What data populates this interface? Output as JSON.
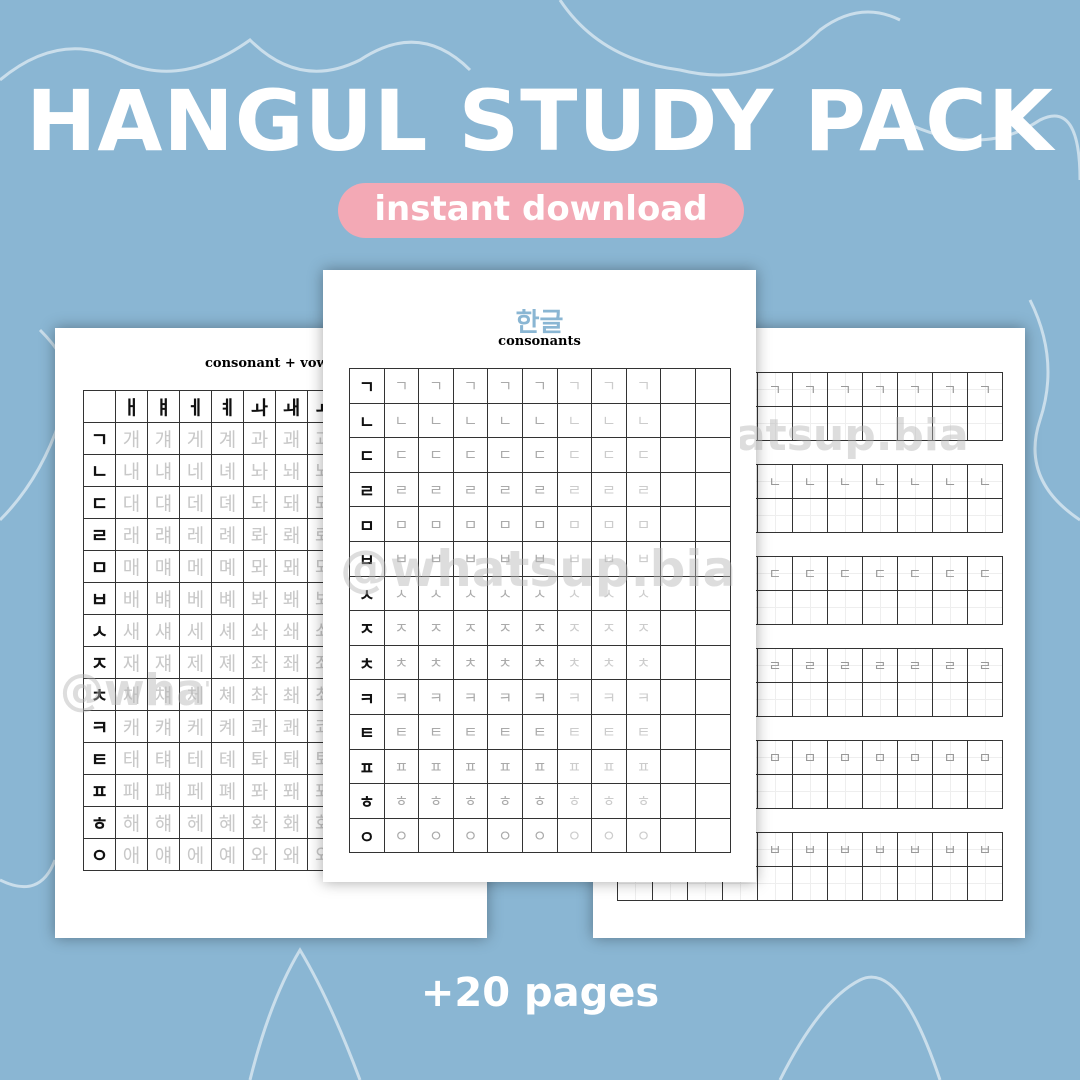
{
  "title": "HANGUL STUDY PACK",
  "badge": "instant download",
  "footer": "+20 pages",
  "watermark": "@whatsup.bia",
  "colors": {
    "background": "#8ab6d3",
    "badge": "#f3a9b5",
    "accent": "#8ab6d3"
  },
  "left_page": {
    "heading": "consonant + vowel",
    "vowels": [
      "ㅐ",
      "ㅒ",
      "ㅔ",
      "ㅖ",
      "ㅘ",
      "ㅙ",
      "ㅚ"
    ],
    "rows": [
      {
        "c": "ㄱ",
        "s": [
          "개",
          "걔",
          "게",
          "계",
          "과",
          "괘",
          "괴"
        ]
      },
      {
        "c": "ㄴ",
        "s": [
          "내",
          "냬",
          "네",
          "녜",
          "놔",
          "놰",
          "뇌"
        ]
      },
      {
        "c": "ㄷ",
        "s": [
          "대",
          "댸",
          "데",
          "뎨",
          "돠",
          "돼",
          "되"
        ]
      },
      {
        "c": "ㄹ",
        "s": [
          "래",
          "럐",
          "레",
          "례",
          "롸",
          "뢔",
          "뢰"
        ]
      },
      {
        "c": "ㅁ",
        "s": [
          "매",
          "먜",
          "메",
          "몌",
          "뫄",
          "뫠",
          "뫼"
        ]
      },
      {
        "c": "ㅂ",
        "s": [
          "배",
          "뱨",
          "베",
          "볘",
          "봐",
          "봬",
          "뵈"
        ]
      },
      {
        "c": "ㅅ",
        "s": [
          "새",
          "섀",
          "세",
          "셰",
          "솨",
          "쇄",
          "쇠"
        ]
      },
      {
        "c": "ㅈ",
        "s": [
          "재",
          "쟤",
          "제",
          "졔",
          "좌",
          "좨",
          "죄"
        ]
      },
      {
        "c": "ㅊ",
        "s": [
          "채",
          "챼",
          "체",
          "쳬",
          "촤",
          "쵀",
          "최"
        ]
      },
      {
        "c": "ㅋ",
        "s": [
          "캐",
          "컈",
          "케",
          "켸",
          "콰",
          "쾌",
          "쾨"
        ]
      },
      {
        "c": "ㅌ",
        "s": [
          "태",
          "턔",
          "테",
          "톄",
          "톼",
          "퇘",
          "퇴"
        ]
      },
      {
        "c": "ㅍ",
        "s": [
          "패",
          "퍠",
          "페",
          "폐",
          "퐈",
          "퐤",
          "푀"
        ]
      },
      {
        "c": "ㅎ",
        "s": [
          "해",
          "햬",
          "헤",
          "혜",
          "화",
          "홰",
          "회"
        ]
      },
      {
        "c": "ㅇ",
        "s": [
          "애",
          "얘",
          "에",
          "예",
          "와",
          "왜",
          "외"
        ]
      }
    ]
  },
  "center_page": {
    "title": "한글",
    "subtitle": "consonants",
    "consonants": [
      "ㄱ",
      "ㄴ",
      "ㄷ",
      "ㄹ",
      "ㅁ",
      "ㅂ",
      "ㅅ",
      "ㅈ",
      "ㅊ",
      "ㅋ",
      "ㅌ",
      "ㅍ",
      "ㅎ",
      "ㅇ"
    ]
  },
  "right_page": {
    "consonants": [
      "ㄱ",
      "ㄴ",
      "ㄷ",
      "ㄹ",
      "ㅁ",
      "ㅂ"
    ]
  }
}
